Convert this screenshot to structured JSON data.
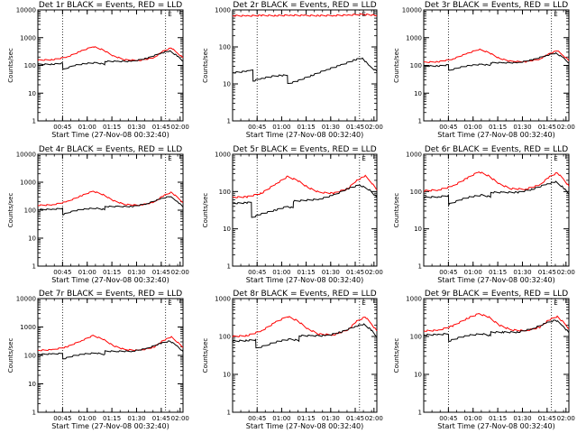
{
  "chart_data": [
    {
      "type": "line",
      "title": "Det 1r BLACK = Events, RED = LLD",
      "xlabel": "Start Time (27-Nov-08 00:32:40)",
      "ylabel": "Counts/sec",
      "yscale": "log",
      "ylim": [
        1,
        10000
      ],
      "xlim": [
        0,
        100
      ],
      "yticks": [
        "1",
        "10",
        "100",
        "1000",
        "10000"
      ],
      "xticks": [
        {
          "x": 17,
          "label": "00:45"
        },
        {
          "x": 34,
          "label": "01:00"
        },
        {
          "x": 51,
          "label": "01:15"
        },
        {
          "x": 68,
          "label": "01:30"
        },
        {
          "x": 85,
          "label": "01:45"
        },
        {
          "x": 98,
          "label": "02:00"
        }
      ],
      "vlines": [
        17,
        88
      ],
      "marker": "E",
      "marker_x": 91,
      "series": [
        {
          "color": "#ff0000",
          "x": [
            0,
            10,
            20,
            30,
            38,
            45,
            52,
            60,
            70,
            80,
            86,
            92,
            96,
            100
          ],
          "y": [
            155,
            160,
            200,
            330,
            480,
            360,
            220,
            160,
            150,
            190,
            320,
            430,
            280,
            190
          ]
        },
        {
          "color": "#000000",
          "x": [
            0,
            10,
            17,
            17.2,
            25,
            32,
            40,
            46,
            46.2,
            55,
            65,
            75,
            85,
            91,
            96,
            100
          ],
          "y": [
            110,
            110,
            120,
            70,
            100,
            115,
            125,
            110,
            140,
            140,
            140,
            180,
            280,
            330,
            220,
            140
          ]
        }
      ]
    },
    {
      "type": "line",
      "title": "Det 2r BLACK = Events, RED = LLD",
      "xlabel": "Start Time (27-Nov-08 00:32:40)",
      "ylabel": "Counts/sec",
      "yscale": "log",
      "ylim": [
        1,
        1000
      ],
      "xlim": [
        0,
        100
      ],
      "yticks": [
        "1",
        "10",
        "100",
        "1000"
      ],
      "xticks": [
        {
          "x": 17,
          "label": "00:45"
        },
        {
          "x": 34,
          "label": "01:00"
        },
        {
          "x": 51,
          "label": "01:15"
        },
        {
          "x": 68,
          "label": "01:30"
        },
        {
          "x": 85,
          "label": "01:45"
        },
        {
          "x": 98,
          "label": "02:00"
        }
      ],
      "vlines": [
        17,
        88
      ],
      "marker": "E",
      "marker_x": 91,
      "series": [
        {
          "color": "#ff0000",
          "x": [
            0,
            10,
            20,
            30,
            40,
            50,
            60,
            70,
            80,
            88,
            95,
            100
          ],
          "y": [
            700,
            690,
            710,
            700,
            720,
            705,
            700,
            710,
            720,
            760,
            740,
            700
          ]
        },
        {
          "color": "#000000",
          "x": [
            0,
            10,
            14,
            14.2,
            20,
            28,
            34,
            38,
            38.2,
            45,
            55,
            65,
            75,
            85,
            90,
            95,
            100
          ],
          "y": [
            20,
            22,
            25,
            12,
            14,
            16,
            17,
            17,
            10,
            12,
            17,
            24,
            32,
            45,
            50,
            30,
            22
          ]
        }
      ]
    },
    {
      "type": "line",
      "title": "Det 3r BLACK = Events, RED = LLD",
      "xlabel": "Start Time (27-Nov-08 00:32:40)",
      "ylabel": "Counts/sec",
      "yscale": "log",
      "ylim": [
        1,
        10000
      ],
      "xlim": [
        0,
        100
      ],
      "yticks": [
        "1",
        "10",
        "100",
        "1000",
        "10000"
      ],
      "xticks": [
        {
          "x": 17,
          "label": "00:45"
        },
        {
          "x": 34,
          "label": "01:00"
        },
        {
          "x": 51,
          "label": "01:15"
        },
        {
          "x": 68,
          "label": "01:30"
        },
        {
          "x": 85,
          "label": "01:45"
        },
        {
          "x": 98,
          "label": "02:00"
        }
      ],
      "vlines": [
        17,
        88
      ],
      "marker": "E",
      "marker_x": 91,
      "series": [
        {
          "color": "#ff0000",
          "x": [
            0,
            10,
            20,
            30,
            38,
            45,
            52,
            60,
            70,
            80,
            86,
            92,
            96,
            100
          ],
          "y": [
            130,
            135,
            170,
            270,
            380,
            290,
            180,
            140,
            135,
            170,
            260,
            340,
            230,
            150
          ]
        },
        {
          "color": "#000000",
          "x": [
            0,
            10,
            17,
            17.2,
            25,
            32,
            40,
            46,
            46.2,
            55,
            65,
            75,
            85,
            91,
            96,
            100
          ],
          "y": [
            95,
            95,
            105,
            65,
            85,
            100,
            110,
            100,
            125,
            125,
            125,
            160,
            230,
            280,
            190,
            120
          ]
        }
      ]
    },
    {
      "type": "line",
      "title": "Det 4r BLACK = Events, RED = LLD",
      "xlabel": "Start Time (27-Nov-08 00:32:40)",
      "ylabel": "Counts/sec",
      "yscale": "log",
      "ylim": [
        1,
        10000
      ],
      "xlim": [
        0,
        100
      ],
      "yticks": [
        "1",
        "10",
        "100",
        "1000",
        "10000"
      ],
      "xticks": [
        {
          "x": 17,
          "label": "00:45"
        },
        {
          "x": 34,
          "label": "01:00"
        },
        {
          "x": 51,
          "label": "01:15"
        },
        {
          "x": 68,
          "label": "01:30"
        },
        {
          "x": 85,
          "label": "01:45"
        },
        {
          "x": 98,
          "label": "02:00"
        }
      ],
      "vlines": [
        17,
        88
      ],
      "marker": "E",
      "marker_x": 91,
      "series": [
        {
          "color": "#ff0000",
          "x": [
            0,
            10,
            20,
            30,
            38,
            45,
            52,
            60,
            70,
            80,
            86,
            92,
            96,
            100
          ],
          "y": [
            150,
            155,
            200,
            330,
            480,
            360,
            220,
            160,
            150,
            190,
            320,
            440,
            290,
            190
          ]
        },
        {
          "color": "#000000",
          "x": [
            0,
            10,
            17,
            17.2,
            25,
            32,
            40,
            46,
            46.2,
            55,
            65,
            75,
            85,
            91,
            96,
            100
          ],
          "y": [
            105,
            108,
            115,
            70,
            95,
            110,
            118,
            105,
            135,
            135,
            135,
            170,
            260,
            310,
            210,
            130
          ]
        }
      ]
    },
    {
      "type": "line",
      "title": "Det 5r BLACK = Events, RED = LLD",
      "xlabel": "Start Time (27-Nov-08 00:32:40)",
      "ylabel": "Counts/sec",
      "yscale": "log",
      "ylim": [
        1,
        1000
      ],
      "xlim": [
        0,
        100
      ],
      "yticks": [
        "1",
        "10",
        "100",
        "1000"
      ],
      "xticks": [
        {
          "x": 17,
          "label": "00:45"
        },
        {
          "x": 34,
          "label": "01:00"
        },
        {
          "x": 51,
          "label": "01:15"
        },
        {
          "x": 68,
          "label": "01:30"
        },
        {
          "x": 85,
          "label": "01:45"
        },
        {
          "x": 98,
          "label": "02:00"
        }
      ],
      "vlines": [
        17,
        88
      ],
      "marker": "E",
      "marker_x": 91,
      "series": [
        {
          "color": "#ff0000",
          "x": [
            0,
            10,
            20,
            30,
            38,
            45,
            52,
            60,
            70,
            80,
            86,
            92,
            96,
            100
          ],
          "y": [
            70,
            72,
            90,
            160,
            250,
            200,
            130,
            95,
            90,
            120,
            200,
            260,
            180,
            110
          ]
        },
        {
          "color": "#000000",
          "x": [
            0,
            10,
            13,
            13.2,
            20,
            30,
            38,
            42,
            42.2,
            50,
            60,
            70,
            80,
            88,
            95,
            100
          ],
          "y": [
            48,
            50,
            52,
            20,
            25,
            32,
            40,
            36,
            55,
            58,
            62,
            80,
            120,
            150,
            110,
            70
          ]
        }
      ]
    },
    {
      "type": "line",
      "title": "Det 6r BLACK = Events, RED = LLD",
      "xlabel": "Start Time (27-Nov-08 00:32:40)",
      "ylabel": "Counts/sec",
      "yscale": "log",
      "ylim": [
        1,
        1000
      ],
      "xlim": [
        0,
        100
      ],
      "yticks": [
        "1",
        "10",
        "100",
        "1000"
      ],
      "xticks": [
        {
          "x": 17,
          "label": "00:45"
        },
        {
          "x": 34,
          "label": "01:00"
        },
        {
          "x": 51,
          "label": "01:15"
        },
        {
          "x": 68,
          "label": "01:30"
        },
        {
          "x": 85,
          "label": "01:45"
        },
        {
          "x": 98,
          "label": "02:00"
        }
      ],
      "vlines": [
        17,
        88
      ],
      "marker": "E",
      "marker_x": 91,
      "series": [
        {
          "color": "#ff0000",
          "x": [
            0,
            10,
            20,
            30,
            38,
            45,
            52,
            60,
            70,
            80,
            86,
            92,
            96,
            100
          ],
          "y": [
            105,
            110,
            140,
            230,
            340,
            260,
            160,
            120,
            115,
            150,
            240,
            320,
            220,
            140
          ]
        },
        {
          "color": "#000000",
          "x": [
            0,
            10,
            17,
            17.2,
            25,
            32,
            40,
            46,
            46.2,
            55,
            65,
            75,
            85,
            91,
            96,
            100
          ],
          "y": [
            70,
            72,
            78,
            45,
            60,
            72,
            80,
            72,
            95,
            95,
            95,
            115,
            160,
            180,
            130,
            85
          ]
        }
      ]
    },
    {
      "type": "line",
      "title": "Det 7r BLACK = Events, RED = LLD",
      "xlabel": "Start Time (27-Nov-08 00:32:40)",
      "ylabel": "Counts/sec",
      "yscale": "log",
      "ylim": [
        1,
        10000
      ],
      "xlim": [
        0,
        100
      ],
      "yticks": [
        "1",
        "10",
        "100",
        "1000",
        "10000"
      ],
      "xticks": [
        {
          "x": 17,
          "label": "00:45"
        },
        {
          "x": 34,
          "label": "01:00"
        },
        {
          "x": 51,
          "label": "01:15"
        },
        {
          "x": 68,
          "label": "01:30"
        },
        {
          "x": 85,
          "label": "01:45"
        },
        {
          "x": 98,
          "label": "02:00"
        }
      ],
      "vlines": [
        17,
        88
      ],
      "marker": "E",
      "marker_x": 91,
      "series": [
        {
          "color": "#ff0000",
          "x": [
            0,
            10,
            20,
            30,
            38,
            45,
            52,
            60,
            70,
            80,
            86,
            92,
            96,
            100
          ],
          "y": [
            150,
            158,
            200,
            330,
            500,
            370,
            220,
            160,
            150,
            195,
            330,
            450,
            300,
            190
          ]
        },
        {
          "color": "#000000",
          "x": [
            0,
            10,
            17,
            17.2,
            25,
            32,
            40,
            46,
            46.2,
            55,
            65,
            75,
            85,
            91,
            96,
            100
          ],
          "y": [
            110,
            112,
            118,
            75,
            98,
            112,
            122,
            108,
            140,
            140,
            140,
            175,
            270,
            320,
            215,
            135
          ]
        }
      ]
    },
    {
      "type": "line",
      "title": "Det 8r BLACK = Events, RED = LLD",
      "xlabel": "Start Time (27-Nov-08 00:32:40)",
      "ylabel": "Counts/sec",
      "yscale": "log",
      "ylim": [
        1,
        1000
      ],
      "xlim": [
        0,
        100
      ],
      "yticks": [
        "1",
        "10",
        "100",
        "1000"
      ],
      "xticks": [
        {
          "x": 17,
          "label": "00:45"
        },
        {
          "x": 34,
          "label": "01:00"
        },
        {
          "x": 51,
          "label": "01:15"
        },
        {
          "x": 68,
          "label": "01:30"
        },
        {
          "x": 85,
          "label": "01:45"
        },
        {
          "x": 98,
          "label": "02:00"
        }
      ],
      "vlines": [
        17,
        88
      ],
      "marker": "E",
      "marker_x": 91,
      "series": [
        {
          "color": "#ff0000",
          "x": [
            0,
            10,
            20,
            30,
            38,
            45,
            52,
            60,
            70,
            80,
            86,
            92,
            96,
            100
          ],
          "y": [
            100,
            105,
            140,
            240,
            340,
            260,
            160,
            115,
            110,
            150,
            250,
            330,
            220,
            140
          ]
        },
        {
          "color": "#000000",
          "x": [
            0,
            10,
            16,
            16.2,
            25,
            32,
            40,
            46,
            46.2,
            55,
            65,
            75,
            85,
            91,
            96,
            100
          ],
          "y": [
            75,
            78,
            82,
            48,
            62,
            75,
            85,
            78,
            105,
            105,
            105,
            130,
            185,
            210,
            150,
            95
          ]
        }
      ]
    },
    {
      "type": "line",
      "title": "Det 9r BLACK = Events, RED = LLD",
      "xlabel": "Start Time (27-Nov-08 00:32:40)",
      "ylabel": "Counts/sec",
      "yscale": "log",
      "ylim": [
        1,
        1000
      ],
      "xlim": [
        0,
        100
      ],
      "yticks": [
        "1",
        "10",
        "100",
        "1000"
      ],
      "xticks": [
        {
          "x": 17,
          "label": "00:45"
        },
        {
          "x": 34,
          "label": "01:00"
        },
        {
          "x": 51,
          "label": "01:15"
        },
        {
          "x": 68,
          "label": "01:30"
        },
        {
          "x": 85,
          "label": "01:45"
        },
        {
          "x": 98,
          "label": "02:00"
        }
      ],
      "vlines": [
        17,
        88
      ],
      "marker": "E",
      "marker_x": 91,
      "series": [
        {
          "color": "#ff0000",
          "x": [
            0,
            10,
            20,
            30,
            38,
            45,
            52,
            60,
            70,
            80,
            86,
            92,
            96,
            100
          ],
          "y": [
            140,
            145,
            190,
            300,
            400,
            320,
            200,
            150,
            140,
            175,
            270,
            340,
            240,
            160
          ]
        },
        {
          "color": "#000000",
          "x": [
            0,
            10,
            17,
            17.2,
            25,
            32,
            40,
            46,
            46.2,
            55,
            65,
            75,
            85,
            91,
            96,
            100
          ],
          "y": [
            110,
            112,
            118,
            75,
            95,
            108,
            118,
            105,
            130,
            130,
            130,
            160,
            230,
            270,
            190,
            125
          ]
        }
      ]
    }
  ]
}
